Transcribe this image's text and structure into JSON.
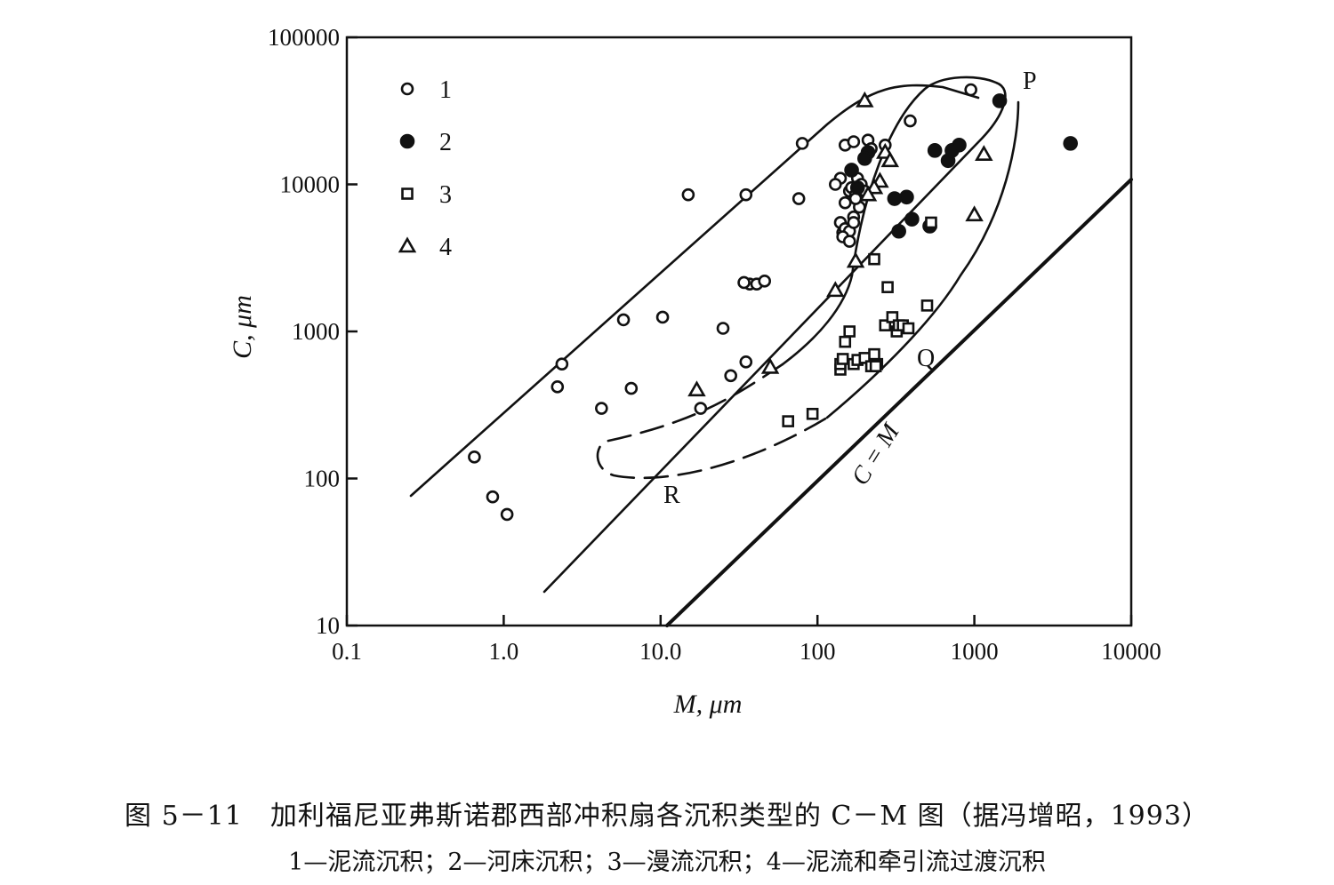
{
  "chart_data": {
    "type": "scatter",
    "xscale": "log",
    "yscale": "log",
    "xlim": [
      0.1,
      10000
    ],
    "ylim": [
      10,
      100000
    ],
    "xlabel": "M, μm",
    "ylabel": "C, μm",
    "xticks": [
      "0.1",
      "1.0",
      "10.0",
      "100",
      "1000",
      "10000"
    ],
    "yticks": [
      "10",
      "100",
      "1000",
      "10000",
      "100000"
    ],
    "legend": {
      "position": "top-left",
      "entries": [
        "1",
        "2",
        "3",
        "4"
      ]
    },
    "series": [
      {
        "name": "1",
        "marker": "open-circle",
        "x": [
          0.65,
          0.85,
          1.05,
          2.2,
          2.35,
          4.2,
          6.5,
          5.8,
          10.3,
          15,
          35,
          37,
          34,
          41,
          46,
          25,
          28,
          35,
          18,
          80,
          76,
          150,
          170,
          210,
          220,
          180,
          160,
          190,
          185,
          165,
          170,
          140,
          145,
          150,
          160,
          170,
          140,
          130,
          190,
          150,
          200,
          175,
          145,
          160,
          175,
          270,
          390,
          950
        ],
        "y": [
          140,
          75,
          57,
          420,
          600,
          300,
          410,
          1200,
          1250,
          8500,
          8500,
          2100,
          2150,
          2100,
          2200,
          1050,
          500,
          620,
          300,
          19000,
          8000,
          18500,
          19500,
          20000,
          17500,
          11000,
          9000,
          10000,
          7000,
          9500,
          6000,
          5500,
          4700,
          5000,
          4800,
          5500,
          11000,
          10000,
          9000,
          7500,
          9000,
          8500,
          4400,
          4100,
          8000,
          18500,
          27000,
          44000
        ]
      },
      {
        "name": "2",
        "marker": "filled-circle",
        "x": [
          1450,
          4100,
          210,
          200,
          310,
          370,
          400,
          330,
          520,
          560,
          680,
          720,
          800,
          180,
          165
        ],
        "y": [
          37000,
          19000,
          16500,
          15000,
          8000,
          8200,
          5800,
          4800,
          5200,
          17000,
          14500,
          17000,
          18500,
          9500,
          12500
        ]
      },
      {
        "name": "3",
        "marker": "open-square",
        "x": [
          65,
          93,
          140,
          140,
          145,
          150,
          160,
          170,
          180,
          200,
          220,
          240,
          230,
          270,
          300,
          320,
          280,
          330,
          350,
          380,
          500,
          530,
          230,
          235
        ],
        "y": [
          245,
          275,
          550,
          600,
          650,
          850,
          1000,
          600,
          640,
          660,
          580,
          600,
          700,
          1100,
          1250,
          1000,
          2000,
          1100,
          1100,
          1050,
          1500,
          5500,
          3100,
          580
        ]
      },
      {
        "name": "4",
        "marker": "open-triangle",
        "x": [
          17,
          50,
          130,
          175,
          200,
          250,
          270,
          290,
          230,
          210,
          1000,
          1150
        ],
        "y": [
          400,
          570,
          1900,
          3000,
          37000,
          10500,
          16500,
          14500,
          9500,
          8500,
          6200,
          16000
        ]
      }
    ],
    "annotations": [
      "P",
      "Q",
      "R",
      "C = M"
    ]
  },
  "caption": {
    "title": "图 5－11　加利福尼亚弗斯诺郡西部冲积扇各沉积类型的 C－M 图（据冯增昭，1993）",
    "legend": "1—泥流沉积；2—河床沉积；3—漫流沉积；4—泥流和牵引流过渡沉积"
  }
}
